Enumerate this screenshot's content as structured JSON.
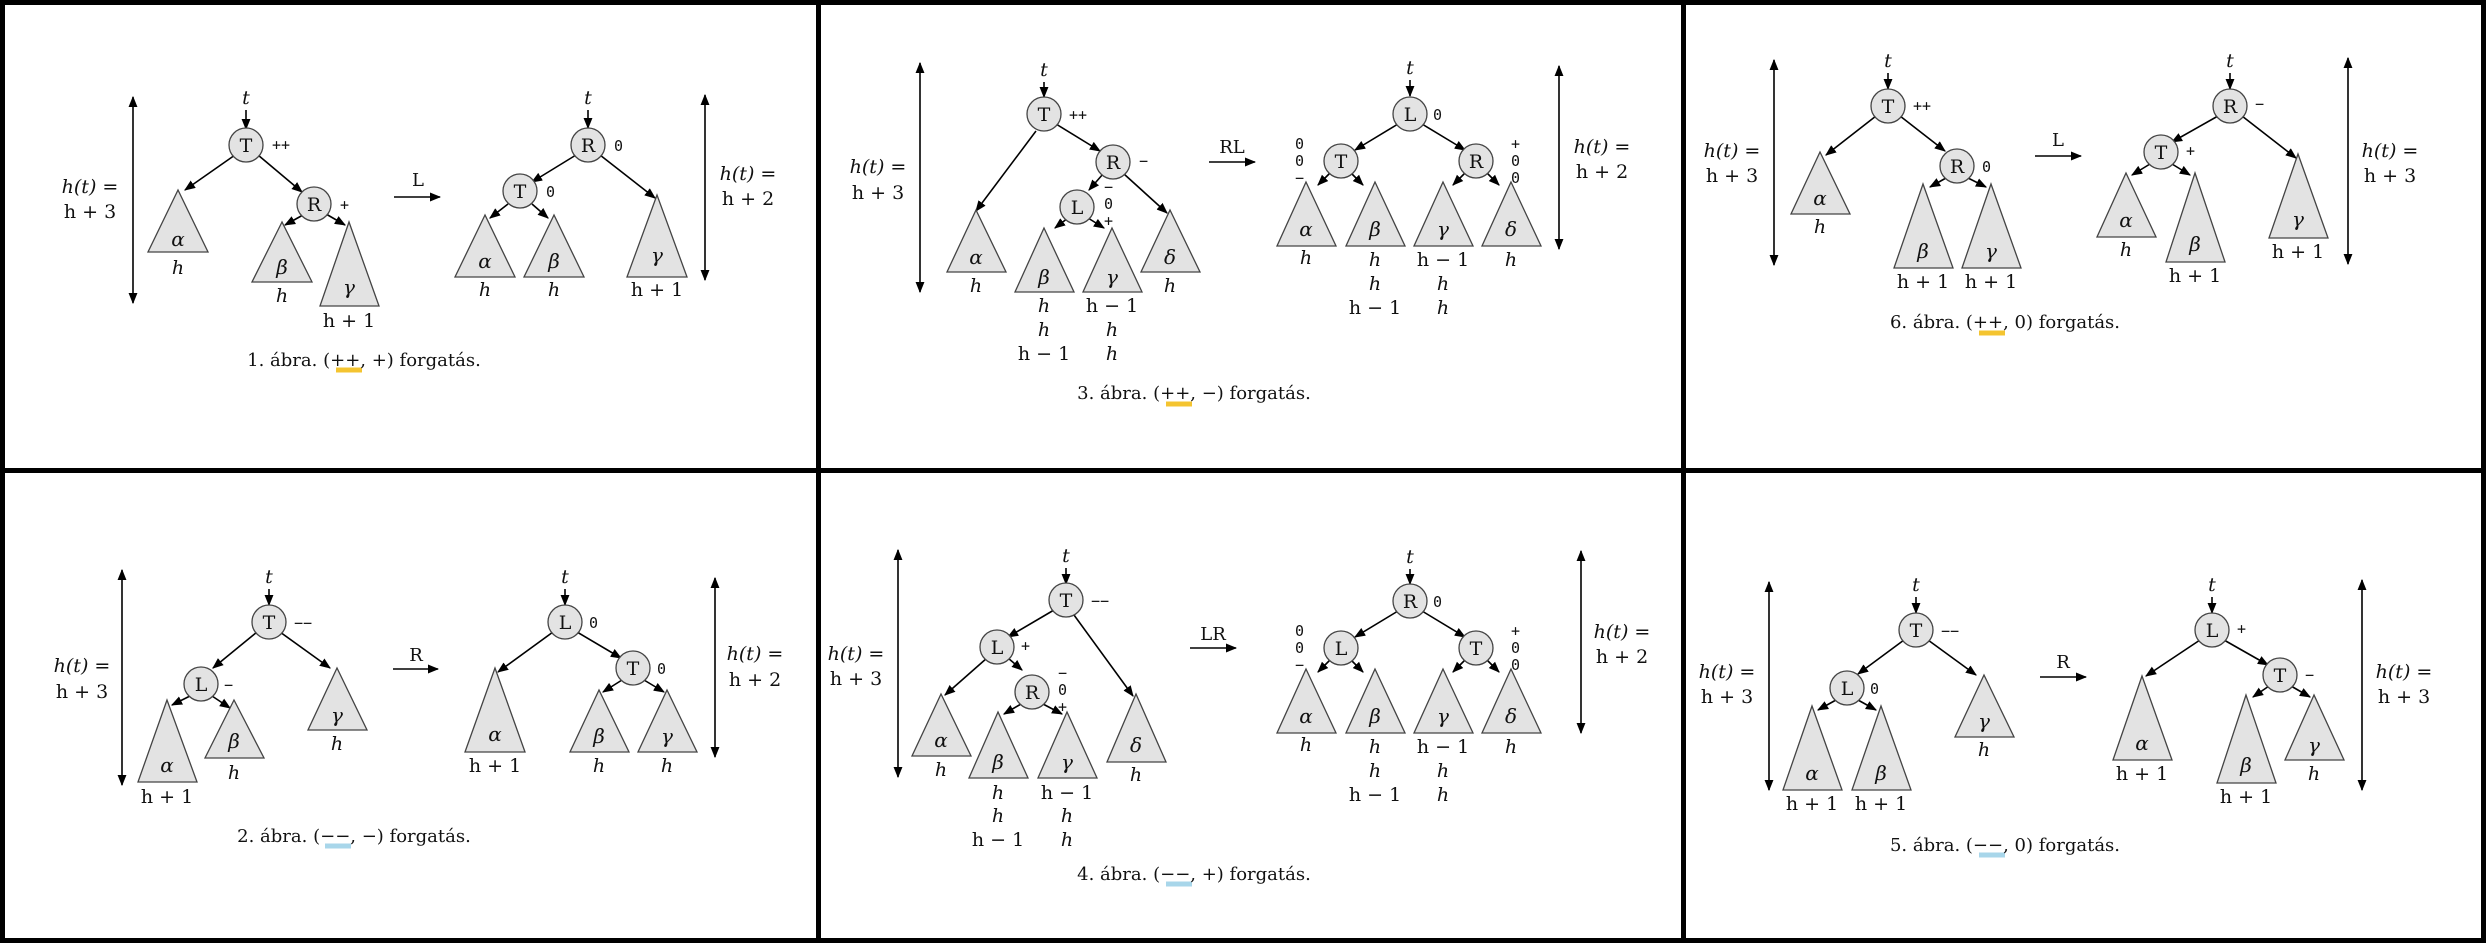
{
  "labels": {
    "t": "t",
    "T": "T",
    "R": "R",
    "L": "L",
    "alpha": "α",
    "beta": "β",
    "gamma": "γ",
    "delta": "δ",
    "h": "h",
    "h_plus_1": "h + 1",
    "h_minus_1": "h − 1",
    "ht": "h(t) =",
    "h_plus_2": "h + 2",
    "h_plus_3": "h + 3"
  },
  "balance": {
    "pp": "++",
    "mm": "−−",
    "p": "+",
    "m": "−",
    "z": "0"
  },
  "rotations": {
    "L": "L",
    "R": "R",
    "RL": "RL",
    "LR": "LR"
  },
  "captions": {
    "fig1": {
      "prefix": "1. ábra. (",
      "main": "++",
      "rest": ", +) forgatás."
    },
    "fig2": {
      "prefix": "2. ábra. (",
      "main": "−−",
      "rest": ", −) forgatás."
    },
    "fig3": {
      "prefix": "3. ábra. (",
      "main": "++",
      "rest": ", −) forgatás."
    },
    "fig4": {
      "prefix": "4. ábra. (",
      "main": "−−",
      "rest": ", +) forgatás."
    },
    "fig5": {
      "prefix": "5. ábra. (",
      "main": "−−",
      "rest": ", 0) forgatás."
    },
    "fig6": {
      "prefix": "6. ábra. (",
      "main": "++",
      "rest": ", 0) forgatás."
    }
  }
}
